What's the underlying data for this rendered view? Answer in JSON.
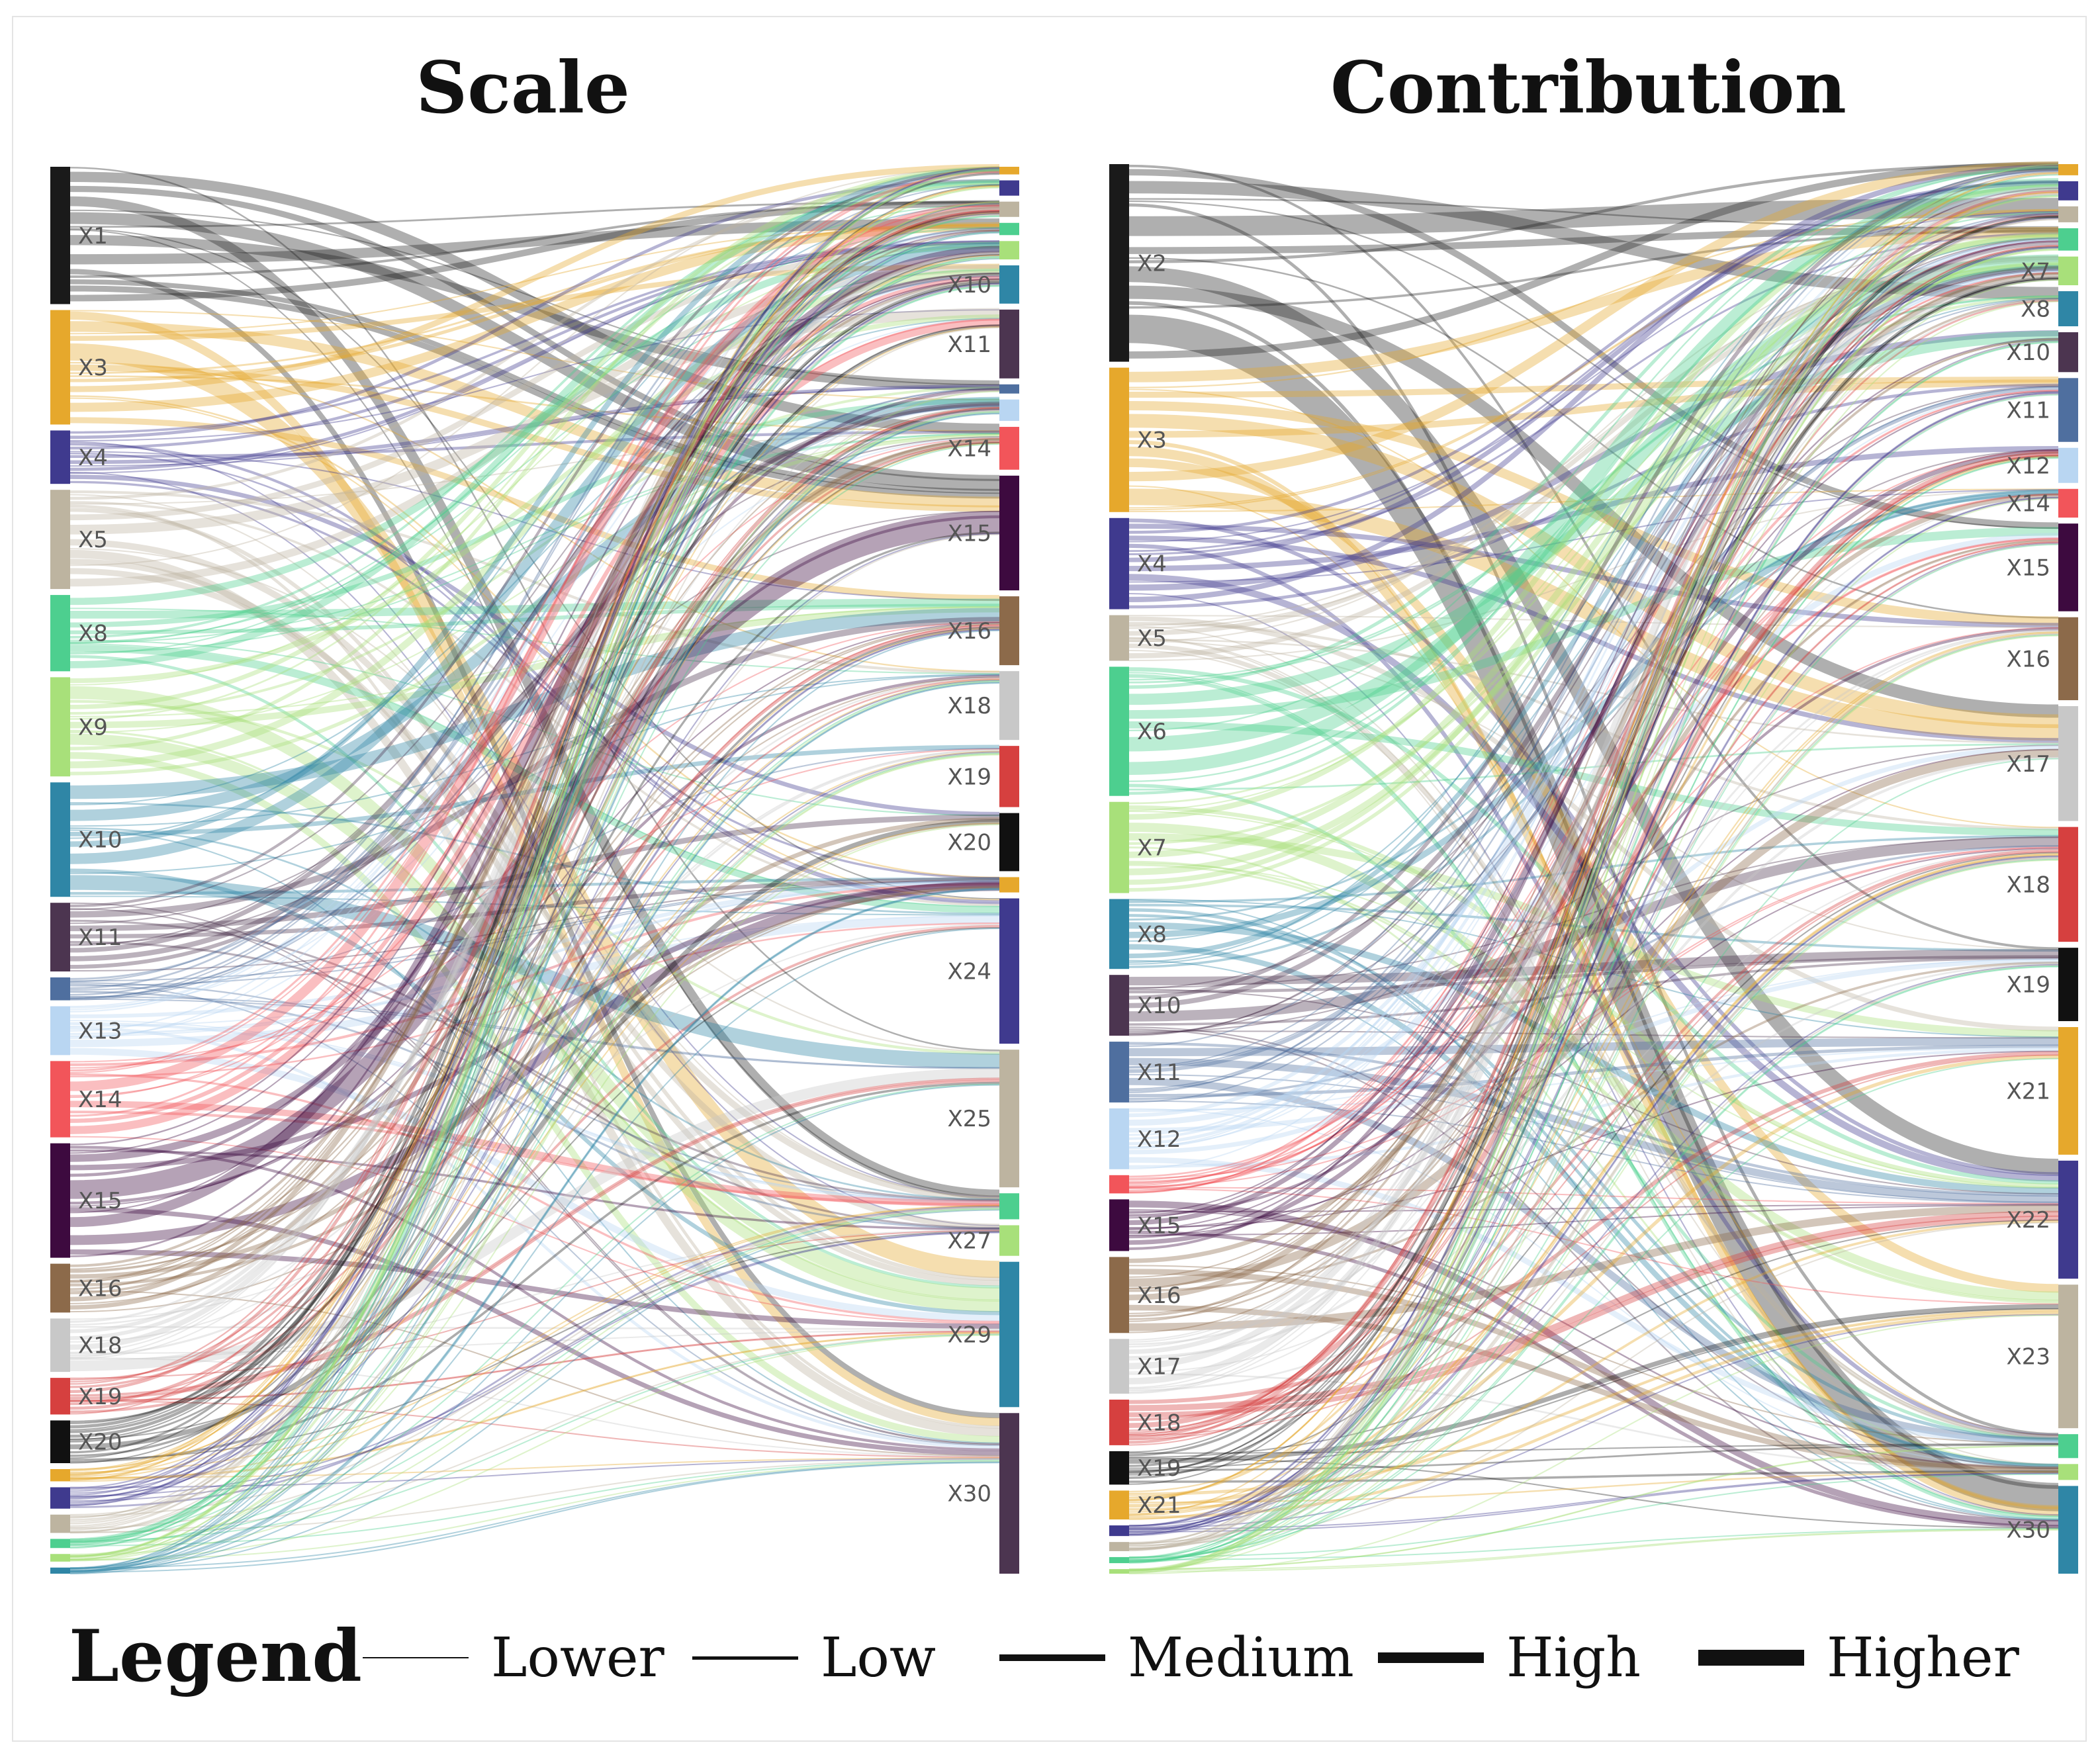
{
  "chart_data": [
    {
      "type": "sankey",
      "title": "Scale",
      "sources": [
        {
          "id": "X1",
          "label": "X1",
          "value": 9,
          "color": "#1a1a1a",
          "show_label": true
        },
        {
          "id": "X3",
          "label": "X3",
          "value": 7.5,
          "color": "#e6a82c",
          "show_label": true
        },
        {
          "id": "X4",
          "label": "X4",
          "value": 3.5,
          "color": "#3f3a8e",
          "show_label": true
        },
        {
          "id": "X5",
          "label": "X5",
          "value": 6.5,
          "color": "#bdb4a0",
          "show_label": true
        },
        {
          "id": "X8",
          "label": "X8",
          "value": 5,
          "color": "#4dcf8f",
          "show_label": true
        },
        {
          "id": "X9",
          "label": "X9",
          "value": 6.5,
          "color": "#a8e07a",
          "show_label": true
        },
        {
          "id": "X10",
          "label": "X10",
          "value": 7.5,
          "color": "#2f86a6",
          "show_label": true
        },
        {
          "id": "X11",
          "label": "X11",
          "value": 4.5,
          "color": "#4c3550",
          "show_label": true
        },
        {
          "id": "X12",
          "label": "",
          "value": 1.5,
          "color": "#4f6f9f",
          "show_label": false
        },
        {
          "id": "X13",
          "label": "X13",
          "value": 3.2,
          "color": "#b9d6f2",
          "show_label": true
        },
        {
          "id": "X14",
          "label": "X14",
          "value": 5,
          "color": "#f2555a",
          "show_label": true
        },
        {
          "id": "X15",
          "label": "X15",
          "value": 7.5,
          "color": "#3d0a3f",
          "show_label": true
        },
        {
          "id": "X16",
          "label": "X16",
          "value": 3.2,
          "color": "#8c6a4a",
          "show_label": true
        },
        {
          "id": "X18",
          "label": "X18",
          "value": 3.5,
          "color": "#c8c8c8",
          "show_label": true
        },
        {
          "id": "X19",
          "label": "X19",
          "value": 2.4,
          "color": "#d6403f",
          "show_label": true
        },
        {
          "id": "X20",
          "label": "X20",
          "value": 2.8,
          "color": "#111111",
          "show_label": true
        },
        {
          "id": "X21",
          "label": "",
          "value": 0.8,
          "color": "#e6a82c",
          "show_label": false
        },
        {
          "id": "X22",
          "label": "",
          "value": 1.4,
          "color": "#3f3a8e",
          "show_label": false
        },
        {
          "id": "X23",
          "label": "",
          "value": 1.2,
          "color": "#bdb4a0",
          "show_label": false
        },
        {
          "id": "X24",
          "label": "",
          "value": 0.6,
          "color": "#4dcf8f",
          "show_label": false
        },
        {
          "id": "X25",
          "label": "",
          "value": 0.5,
          "color": "#a8e07a",
          "show_label": false
        },
        {
          "id": "X26",
          "label": "",
          "value": 0.4,
          "color": "#2f86a6",
          "show_label": false
        }
      ],
      "targets": [
        {
          "id": "T1",
          "label": "",
          "value": 0.5,
          "color": "#e6a82c",
          "show_label": false
        },
        {
          "id": "T2",
          "label": "",
          "value": 1,
          "color": "#3f3a8e",
          "show_label": false
        },
        {
          "id": "T3",
          "label": "",
          "value": 1,
          "color": "#bdb4a0",
          "show_label": false
        },
        {
          "id": "T4",
          "label": "",
          "value": 0.8,
          "color": "#4dcf8f",
          "show_label": false
        },
        {
          "id": "T5",
          "label": "",
          "value": 1.2,
          "color": "#a8e07a",
          "show_label": false
        },
        {
          "id": "X10",
          "label": "X10",
          "value": 2.5,
          "color": "#2f86a6",
          "show_label": true
        },
        {
          "id": "X11",
          "label": "X11",
          "value": 4.5,
          "color": "#4c3550",
          "show_label": true
        },
        {
          "id": "T12",
          "label": "",
          "value": 0.6,
          "color": "#4f6f9f",
          "show_label": false
        },
        {
          "id": "T13",
          "label": "",
          "value": 1.4,
          "color": "#b9d6f2",
          "show_label": false
        },
        {
          "id": "X14",
          "label": "X14",
          "value": 2.8,
          "color": "#f2555a",
          "show_label": true
        },
        {
          "id": "X15",
          "label": "X15",
          "value": 7.5,
          "color": "#3d0a3f",
          "show_label": true
        },
        {
          "id": "X16",
          "label": "X16",
          "value": 4.5,
          "color": "#8c6a4a",
          "show_label": true
        },
        {
          "id": "X18",
          "label": "X18",
          "value": 4.5,
          "color": "#c8c8c8",
          "show_label": true
        },
        {
          "id": "X19",
          "label": "X19",
          "value": 4,
          "color": "#d6403f",
          "show_label": true
        },
        {
          "id": "X20",
          "label": "X20",
          "value": 3.8,
          "color": "#111111",
          "show_label": true
        },
        {
          "id": "T21",
          "label": "",
          "value": 1,
          "color": "#e6a82c",
          "show_label": false
        },
        {
          "id": "X24",
          "label": "X24",
          "value": 9.5,
          "color": "#3f3a8e",
          "show_label": true
        },
        {
          "id": "X25",
          "label": "X25",
          "value": 9,
          "color": "#bdb4a0",
          "show_label": true
        },
        {
          "id": "T26",
          "label": "",
          "value": 1.7,
          "color": "#4dcf8f",
          "show_label": false
        },
        {
          "id": "X27",
          "label": "X27",
          "value": 2,
          "color": "#a8e07a",
          "show_label": true
        },
        {
          "id": "X29",
          "label": "X29",
          "value": 9.5,
          "color": "#2f86a6",
          "show_label": true
        },
        {
          "id": "X30",
          "label": "X30",
          "value": 10.5,
          "color": "#4c3550",
          "show_label": true
        }
      ],
      "link_seed": 7,
      "links_per_source": 16
    },
    {
      "type": "sankey",
      "title": "Contribution",
      "sources": [
        {
          "id": "X2",
          "label": "X2",
          "value": 13,
          "color": "#1a1a1a",
          "show_label": true
        },
        {
          "id": "X3",
          "label": "X3",
          "value": 9.5,
          "color": "#e6a82c",
          "show_label": true
        },
        {
          "id": "X4",
          "label": "X4",
          "value": 6,
          "color": "#3f3a8e",
          "show_label": true
        },
        {
          "id": "X5",
          "label": "X5",
          "value": 3,
          "color": "#bdb4a0",
          "show_label": true
        },
        {
          "id": "X6",
          "label": "X6",
          "value": 8.5,
          "color": "#4dcf8f",
          "show_label": true
        },
        {
          "id": "X7",
          "label": "X7",
          "value": 6,
          "color": "#a8e07a",
          "show_label": true
        },
        {
          "id": "X8",
          "label": "X8",
          "value": 4.6,
          "color": "#2f86a6",
          "show_label": true
        },
        {
          "id": "X10",
          "label": "X10",
          "value": 4,
          "color": "#4c3550",
          "show_label": true
        },
        {
          "id": "X11",
          "label": "X11",
          "value": 4,
          "color": "#4f6f9f",
          "show_label": true
        },
        {
          "id": "X12",
          "label": "X12",
          "value": 4,
          "color": "#b9d6f2",
          "show_label": true
        },
        {
          "id": "X14",
          "label": "",
          "value": 1.2,
          "color": "#f2555a",
          "show_label": false
        },
        {
          "id": "X15",
          "label": "X15",
          "value": 3.4,
          "color": "#3d0a3f",
          "show_label": true
        },
        {
          "id": "X16",
          "label": "X16",
          "value": 5,
          "color": "#8c6a4a",
          "show_label": true
        },
        {
          "id": "X17",
          "label": "X17",
          "value": 3.6,
          "color": "#c8c8c8",
          "show_label": true
        },
        {
          "id": "X18",
          "label": "X18",
          "value": 3,
          "color": "#d6403f",
          "show_label": true
        },
        {
          "id": "X19",
          "label": "X19",
          "value": 2.2,
          "color": "#111111",
          "show_label": true
        },
        {
          "id": "X21",
          "label": "X21",
          "value": 1.9,
          "color": "#e6a82c",
          "show_label": true
        },
        {
          "id": "X22",
          "label": "",
          "value": 0.7,
          "color": "#3f3a8e",
          "show_label": false
        },
        {
          "id": "X23",
          "label": "",
          "value": 0.6,
          "color": "#bdb4a0",
          "show_label": false
        },
        {
          "id": "X24",
          "label": "",
          "value": 0.4,
          "color": "#4dcf8f",
          "show_label": false
        },
        {
          "id": "X25",
          "label": "",
          "value": 0.3,
          "color": "#a8e07a",
          "show_label": false
        }
      ],
      "targets": [
        {
          "id": "T1",
          "label": "",
          "value": 0.7,
          "color": "#e6a82c",
          "show_label": false
        },
        {
          "id": "T2",
          "label": "",
          "value": 1.2,
          "color": "#3f3a8e",
          "show_label": false
        },
        {
          "id": "T3",
          "label": "",
          "value": 1,
          "color": "#bdb4a0",
          "show_label": false
        },
        {
          "id": "T4",
          "label": "",
          "value": 1.4,
          "color": "#4dcf8f",
          "show_label": false
        },
        {
          "id": "X7",
          "label": "X7",
          "value": 1.8,
          "color": "#a8e07a",
          "show_label": true
        },
        {
          "id": "X8",
          "label": "X8",
          "value": 2.2,
          "color": "#2f86a6",
          "show_label": true
        },
        {
          "id": "X10",
          "label": "X10",
          "value": 2.5,
          "color": "#4c3550",
          "show_label": true
        },
        {
          "id": "X11",
          "label": "X11",
          "value": 4,
          "color": "#4f6f9f",
          "show_label": true
        },
        {
          "id": "X12",
          "label": "X12",
          "value": 2.2,
          "color": "#b9d6f2",
          "show_label": true
        },
        {
          "id": "X14",
          "label": "X14",
          "value": 1.8,
          "color": "#f2555a",
          "show_label": true
        },
        {
          "id": "X15",
          "label": "X15",
          "value": 5.5,
          "color": "#3d0a3f",
          "show_label": true
        },
        {
          "id": "X16",
          "label": "X16",
          "value": 5.2,
          "color": "#8c6a4a",
          "show_label": true
        },
        {
          "id": "X17",
          "label": "X17",
          "value": 7.2,
          "color": "#c8c8c8",
          "show_label": true
        },
        {
          "id": "X18",
          "label": "X18",
          "value": 7.2,
          "color": "#d6403f",
          "show_label": true
        },
        {
          "id": "X19",
          "label": "X19",
          "value": 4.6,
          "color": "#111111",
          "show_label": true
        },
        {
          "id": "X21",
          "label": "X21",
          "value": 8,
          "color": "#e6a82c",
          "show_label": true
        },
        {
          "id": "X22",
          "label": "X22",
          "value": 7.4,
          "color": "#3f3a8e",
          "show_label": true
        },
        {
          "id": "X23",
          "label": "X23",
          "value": 9,
          "color": "#bdb4a0",
          "show_label": true
        },
        {
          "id": "T24",
          "label": "",
          "value": 1.5,
          "color": "#4dcf8f",
          "show_label": false
        },
        {
          "id": "T25",
          "label": "",
          "value": 1,
          "color": "#a8e07a",
          "show_label": false
        },
        {
          "id": "X30",
          "label": "X30",
          "value": 5.5,
          "color": "#2f86a6",
          "show_label": true
        }
      ],
      "link_seed": 13,
      "links_per_source": 16
    }
  ],
  "legend": {
    "title": "Legend",
    "items": [
      {
        "label": "Lower",
        "weight": 1
      },
      {
        "label": "Low",
        "weight": 2
      },
      {
        "label": "Medium",
        "weight": 3
      },
      {
        "label": "High",
        "weight": 4
      },
      {
        "label": "Higher",
        "weight": 5
      }
    ]
  }
}
